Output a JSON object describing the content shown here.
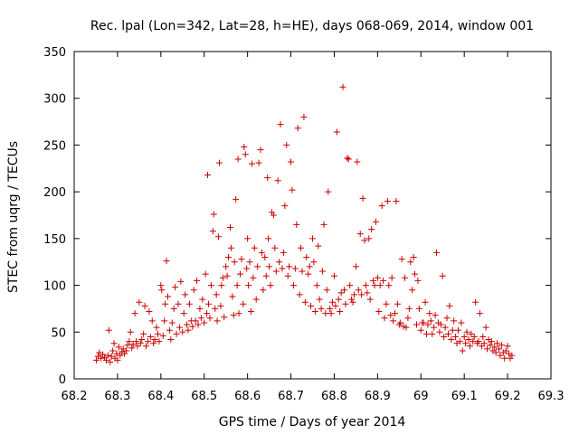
{
  "chart_data": {
    "type": "scatter",
    "title": "Rec. lpal (Lon=342, Lat=28, h=HE), days 068-069, 2014, window 001",
    "xlabel": "GPS time / Days of year 2014",
    "ylabel": "STEC from uqrg / TECUs",
    "xlim": [
      68.2,
      69.3
    ],
    "ylim": [
      0,
      350
    ],
    "x_ticks": [
      "68.2",
      "68.3",
      "68.4",
      "68.5",
      "68.6",
      "68.7",
      "68.8",
      "68.9",
      "69",
      "69.1",
      "69.2",
      "69.3"
    ],
    "y_ticks": [
      "0",
      "50",
      "100",
      "150",
      "200",
      "250",
      "300",
      "350"
    ],
    "grid": false,
    "legend": "none",
    "marker": "+",
    "color": "#cc0000",
    "series": [
      {
        "points": [
          [
            68.251,
            20
          ],
          [
            68.255,
            24
          ],
          [
            68.258,
            28
          ],
          [
            68.262,
            22
          ],
          [
            68.266,
            26
          ],
          [
            68.27,
            23
          ],
          [
            68.274,
            20
          ],
          [
            68.278,
            25
          ],
          [
            68.28,
            52
          ],
          [
            68.283,
            18
          ],
          [
            68.286,
            24
          ],
          [
            68.289,
            30
          ],
          [
            68.292,
            38
          ],
          [
            68.294,
            22
          ],
          [
            68.298,
            27
          ],
          [
            68.3,
            20
          ],
          [
            68.303,
            34
          ],
          [
            68.306,
            25
          ],
          [
            68.31,
            29
          ],
          [
            68.313,
            32
          ],
          [
            68.316,
            27
          ],
          [
            68.32,
            30
          ],
          [
            68.323,
            36
          ],
          [
            68.327,
            40
          ],
          [
            68.33,
            50
          ],
          [
            68.333,
            33
          ],
          [
            68.336,
            37
          ],
          [
            68.34,
            70
          ],
          [
            68.343,
            40
          ],
          [
            68.346,
            35
          ],
          [
            68.35,
            82
          ],
          [
            68.353,
            38
          ],
          [
            68.356,
            42
          ],
          [
            68.36,
            48
          ],
          [
            68.363,
            78
          ],
          [
            68.366,
            35
          ],
          [
            68.37,
            40
          ],
          [
            68.373,
            72
          ],
          [
            68.376,
            45
          ],
          [
            68.38,
            62
          ],
          [
            68.383,
            38
          ],
          [
            68.386,
            42
          ],
          [
            68.39,
            55
          ],
          [
            68.393,
            48
          ],
          [
            68.396,
            40
          ],
          [
            68.4,
            100
          ],
          [
            68.402,
            95
          ],
          [
            68.405,
            46
          ],
          [
            68.408,
            62
          ],
          [
            68.41,
            80
          ],
          [
            68.413,
            126
          ],
          [
            68.416,
            88
          ],
          [
            68.42,
            52
          ],
          [
            68.423,
            42
          ],
          [
            68.426,
            60
          ],
          [
            68.43,
            75
          ],
          [
            68.433,
            98
          ],
          [
            68.436,
            48
          ],
          [
            68.44,
            80
          ],
          [
            68.443,
            55
          ],
          [
            68.446,
            104
          ],
          [
            68.45,
            50
          ],
          [
            68.453,
            70
          ],
          [
            68.456,
            90
          ],
          [
            68.46,
            58
          ],
          [
            68.463,
            52
          ],
          [
            68.466,
            80
          ],
          [
            68.47,
            62
          ],
          [
            68.473,
            56
          ],
          [
            68.476,
            95
          ],
          [
            68.48,
            62
          ],
          [
            68.483,
            105
          ],
          [
            68.486,
            58
          ],
          [
            68.49,
            75
          ],
          [
            68.493,
            65
          ],
          [
            68.496,
            85
          ],
          [
            68.5,
            60
          ],
          [
            68.503,
            112
          ],
          [
            68.506,
            70
          ],
          [
            68.508,
            218
          ],
          [
            68.51,
            80
          ],
          [
            68.513,
            65
          ],
          [
            68.516,
            100
          ],
          [
            68.52,
            158
          ],
          [
            68.522,
            176
          ],
          [
            68.525,
            75
          ],
          [
            68.528,
            90
          ],
          [
            68.53,
            62
          ],
          [
            68.533,
            152
          ],
          [
            68.535,
            231
          ],
          [
            68.538,
            78
          ],
          [
            68.54,
            100
          ],
          [
            68.543,
            108
          ],
          [
            68.546,
            66
          ],
          [
            68.55,
            120
          ],
          [
            68.553,
            110
          ],
          [
            68.556,
            130
          ],
          [
            68.56,
            162
          ],
          [
            68.562,
            140
          ],
          [
            68.565,
            88
          ],
          [
            68.568,
            68
          ],
          [
            68.57,
            125
          ],
          [
            68.573,
            192
          ],
          [
            68.576,
            100
          ],
          [
            68.578,
            235
          ],
          [
            68.58,
            70
          ],
          [
            68.583,
            112
          ],
          [
            68.586,
            128
          ],
          [
            68.59,
            80
          ],
          [
            68.592,
            248
          ],
          [
            68.595,
            240
          ],
          [
            68.598,
            118
          ],
          [
            68.6,
            150
          ],
          [
            68.602,
            100
          ],
          [
            68.605,
            125
          ],
          [
            68.608,
            72
          ],
          [
            68.61,
            230
          ],
          [
            68.613,
            108
          ],
          [
            68.616,
            140
          ],
          [
            68.62,
            85
          ],
          [
            68.623,
            120
          ],
          [
            68.626,
            231
          ],
          [
            68.63,
            245
          ],
          [
            68.633,
            135
          ],
          [
            68.636,
            95
          ],
          [
            68.64,
            130
          ],
          [
            68.643,
            110
          ],
          [
            68.646,
            215
          ],
          [
            68.648,
            150
          ],
          [
            68.65,
            120
          ],
          [
            68.653,
            100
          ],
          [
            68.656,
            178
          ],
          [
            68.66,
            175
          ],
          [
            68.663,
            140
          ],
          [
            68.666,
            115
          ],
          [
            68.67,
            212
          ],
          [
            68.673,
            125
          ],
          [
            68.676,
            272
          ],
          [
            68.68,
            118
          ],
          [
            68.683,
            135
          ],
          [
            68.686,
            185
          ],
          [
            68.69,
            250
          ],
          [
            68.693,
            110
          ],
          [
            68.696,
            120
          ],
          [
            68.7,
            232
          ],
          [
            68.703,
            202
          ],
          [
            68.706,
            100
          ],
          [
            68.71,
            118
          ],
          [
            68.713,
            165
          ],
          [
            68.716,
            268
          ],
          [
            68.72,
            90
          ],
          [
            68.723,
            140
          ],
          [
            68.726,
            115
          ],
          [
            68.73,
            280
          ],
          [
            68.733,
            82
          ],
          [
            68.736,
            130
          ],
          [
            68.74,
            112
          ],
          [
            68.743,
            120
          ],
          [
            68.746,
            78
          ],
          [
            68.75,
            150
          ],
          [
            68.753,
            125
          ],
          [
            68.756,
            72
          ],
          [
            68.76,
            100
          ],
          [
            68.763,
            142
          ],
          [
            68.766,
            85
          ],
          [
            68.77,
            75
          ],
          [
            68.773,
            115
          ],
          [
            68.776,
            165
          ],
          [
            68.78,
            70
          ],
          [
            68.783,
            95
          ],
          [
            68.786,
            200
          ],
          [
            68.79,
            75
          ],
          [
            68.793,
            70
          ],
          [
            68.796,
            82
          ],
          [
            68.8,
            110
          ],
          [
            68.803,
            78
          ],
          [
            68.806,
            264
          ],
          [
            68.81,
            85
          ],
          [
            68.813,
            72
          ],
          [
            68.816,
            92
          ],
          [
            68.82,
            312
          ],
          [
            68.823,
            95
          ],
          [
            68.826,
            80
          ],
          [
            68.83,
            236
          ],
          [
            68.833,
            235
          ],
          [
            68.836,
            100
          ],
          [
            68.84,
            85
          ],
          [
            68.843,
            82
          ],
          [
            68.846,
            90
          ],
          [
            68.85,
            120
          ],
          [
            68.853,
            232
          ],
          [
            68.856,
            95
          ],
          [
            68.86,
            155
          ],
          [
            68.863,
            90
          ],
          [
            68.866,
            193
          ],
          [
            68.87,
            148
          ],
          [
            68.873,
            100
          ],
          [
            68.876,
            92
          ],
          [
            68.88,
            150
          ],
          [
            68.883,
            85
          ],
          [
            68.886,
            160
          ],
          [
            68.89,
            105
          ],
          [
            68.893,
            100
          ],
          [
            68.896,
            168
          ],
          [
            68.9,
            108
          ],
          [
            68.903,
            72
          ],
          [
            68.906,
            100
          ],
          [
            68.91,
            185
          ],
          [
            68.913,
            105
          ],
          [
            68.916,
            65
          ],
          [
            68.92,
            80
          ],
          [
            68.923,
            190
          ],
          [
            68.926,
            100
          ],
          [
            68.93,
            68
          ],
          [
            68.933,
            108
          ],
          [
            68.936,
            62
          ],
          [
            68.94,
            70
          ],
          [
            68.943,
            190
          ],
          [
            68.946,
            80
          ],
          [
            68.95,
            58
          ],
          [
            68.953,
            60
          ],
          [
            68.956,
            128
          ],
          [
            68.96,
            56
          ],
          [
            68.963,
            108
          ],
          [
            68.966,
            55
          ],
          [
            68.97,
            65
          ],
          [
            68.973,
            75
          ],
          [
            68.976,
            125
          ],
          [
            68.98,
            95
          ],
          [
            68.983,
            130
          ],
          [
            68.986,
            112
          ],
          [
            68.99,
            58
          ],
          [
            68.993,
            105
          ],
          [
            68.996,
            75
          ],
          [
            69.0,
            52
          ],
          [
            69.003,
            60
          ],
          [
            69.006,
            60
          ],
          [
            69.01,
            82
          ],
          [
            69.013,
            48
          ],
          [
            69.016,
            58
          ],
          [
            69.02,
            70
          ],
          [
            69.023,
            62
          ],
          [
            69.026,
            48
          ],
          [
            69.03,
            55
          ],
          [
            69.033,
            68
          ],
          [
            69.036,
            135
          ],
          [
            69.04,
            60
          ],
          [
            69.043,
            50
          ],
          [
            69.046,
            58
          ],
          [
            69.05,
            110
          ],
          [
            69.053,
            45
          ],
          [
            69.056,
            55
          ],
          [
            69.06,
            65
          ],
          [
            69.063,
            48
          ],
          [
            69.066,
            78
          ],
          [
            69.07,
            42
          ],
          [
            69.073,
            52
          ],
          [
            69.076,
            62
          ],
          [
            69.08,
            45
          ],
          [
            69.083,
            38
          ],
          [
            69.086,
            52
          ],
          [
            69.09,
            40
          ],
          [
            69.093,
            60
          ],
          [
            69.096,
            30
          ],
          [
            69.1,
            45
          ],
          [
            69.103,
            38
          ],
          [
            69.106,
            50
          ],
          [
            69.11,
            42
          ],
          [
            69.113,
            35
          ],
          [
            69.116,
            48
          ],
          [
            69.12,
            40
          ],
          [
            69.123,
            45
          ],
          [
            69.126,
            82
          ],
          [
            69.13,
            38
          ],
          [
            69.133,
            40
          ],
          [
            69.136,
            70
          ],
          [
            69.14,
            35
          ],
          [
            69.143,
            45
          ],
          [
            69.146,
            38
          ],
          [
            69.15,
            55
          ],
          [
            69.153,
            32
          ],
          [
            69.156,
            42
          ],
          [
            69.16,
            36
          ],
          [
            69.163,
            40
          ],
          [
            69.166,
            30
          ],
          [
            69.17,
            34
          ],
          [
            69.173,
            28
          ],
          [
            69.176,
            38
          ],
          [
            69.18,
            32
          ],
          [
            69.183,
            25
          ],
          [
            69.186,
            36
          ],
          [
            69.19,
            28
          ],
          [
            69.193,
            22
          ],
          [
            69.196,
            30
          ],
          [
            69.2,
            35
          ],
          [
            69.203,
            27
          ],
          [
            69.206,
            22
          ],
          [
            69.21,
            25
          ]
        ]
      }
    ]
  }
}
